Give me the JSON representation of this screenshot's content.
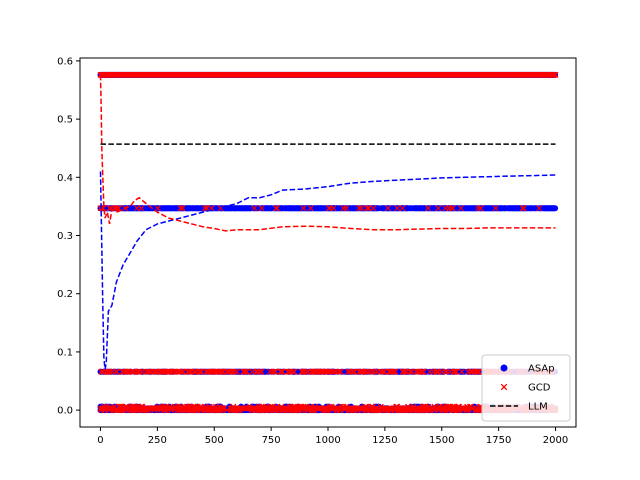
{
  "chart_data": {
    "type": "scatter",
    "title": "",
    "xlabel": "",
    "ylabel": "",
    "xlim": [
      -90,
      2090
    ],
    "ylim": [
      -0.029,
      0.605
    ],
    "xticks": [
      0,
      250,
      500,
      750,
      1000,
      1250,
      1500,
      1750,
      2000
    ],
    "yticks": [
      0.0,
      0.1,
      0.2,
      0.3,
      0.4,
      0.5,
      0.6
    ],
    "grid": false,
    "legend": {
      "position": "lower-right",
      "entries": [
        {
          "label": "ASAp",
          "marker": "circle",
          "color": "#0000ff"
        },
        {
          "label": "GCD",
          "marker": "x",
          "color": "#ff0000"
        },
        {
          "label": "LLM",
          "marker": "dashed-line",
          "color": "#000000"
        }
      ]
    },
    "series": [
      {
        "name": "ASAp",
        "kind": "scatter",
        "color": "#0000ff",
        "levels": [
          0.576,
          0.347,
          0.066,
          0.003,
          0.0
        ],
        "x_range": [
          0,
          2000
        ]
      },
      {
        "name": "GCD",
        "kind": "scatter",
        "color": "#ff0000",
        "levels": [
          0.576,
          0.347,
          0.066,
          0.003,
          0.0
        ],
        "x_range": [
          0,
          2000
        ]
      },
      {
        "name": "ASAp running mean",
        "kind": "dashed-line",
        "color": "#0000ff",
        "points": [
          [
            0,
            0.41
          ],
          [
            5,
            0.3
          ],
          [
            10,
            0.18
          ],
          [
            15,
            0.09
          ],
          [
            20,
            0.07
          ],
          [
            25,
            0.08
          ],
          [
            35,
            0.17
          ],
          [
            50,
            0.18
          ],
          [
            70,
            0.22
          ],
          [
            100,
            0.25
          ],
          [
            130,
            0.27
          ],
          [
            160,
            0.29
          ],
          [
            200,
            0.31
          ],
          [
            250,
            0.32
          ],
          [
            300,
            0.325
          ],
          [
            350,
            0.33
          ],
          [
            400,
            0.335
          ],
          [
            500,
            0.345
          ],
          [
            550,
            0.35
          ],
          [
            600,
            0.355
          ],
          [
            650,
            0.365
          ],
          [
            700,
            0.365
          ],
          [
            750,
            0.37
          ],
          [
            800,
            0.378
          ],
          [
            900,
            0.38
          ],
          [
            1000,
            0.384
          ],
          [
            1100,
            0.39
          ],
          [
            1200,
            0.393
          ],
          [
            1300,
            0.395
          ],
          [
            1400,
            0.397
          ],
          [
            1500,
            0.399
          ],
          [
            1600,
            0.4
          ],
          [
            1700,
            0.401
          ],
          [
            1800,
            0.402
          ],
          [
            1900,
            0.403
          ],
          [
            2000,
            0.404
          ]
        ]
      },
      {
        "name": "GCD running mean",
        "kind": "dashed-line",
        "color": "#ff0000",
        "points": [
          [
            0,
            0.576
          ],
          [
            3,
            0.52
          ],
          [
            6,
            0.45
          ],
          [
            10,
            0.4
          ],
          [
            15,
            0.35
          ],
          [
            20,
            0.33
          ],
          [
            30,
            0.34
          ],
          [
            40,
            0.32
          ],
          [
            50,
            0.345
          ],
          [
            70,
            0.34
          ],
          [
            100,
            0.345
          ],
          [
            130,
            0.35
          ],
          [
            150,
            0.36
          ],
          [
            170,
            0.365
          ],
          [
            200,
            0.355
          ],
          [
            250,
            0.34
          ],
          [
            300,
            0.33
          ],
          [
            350,
            0.325
          ],
          [
            400,
            0.32
          ],
          [
            450,
            0.315
          ],
          [
            500,
            0.312
          ],
          [
            550,
            0.308
          ],
          [
            600,
            0.31
          ],
          [
            700,
            0.31
          ],
          [
            800,
            0.315
          ],
          [
            900,
            0.316
          ],
          [
            1000,
            0.315
          ],
          [
            1100,
            0.312
          ],
          [
            1200,
            0.31
          ],
          [
            1300,
            0.31
          ],
          [
            1400,
            0.311
          ],
          [
            1500,
            0.312
          ],
          [
            1600,
            0.312
          ],
          [
            1700,
            0.313
          ],
          [
            1800,
            0.313
          ],
          [
            1900,
            0.313
          ],
          [
            2000,
            0.313
          ]
        ]
      },
      {
        "name": "LLM",
        "kind": "dashed-line",
        "color": "#000000",
        "points": [
          [
            0,
            0.457
          ],
          [
            2000,
            0.457
          ]
        ]
      }
    ]
  }
}
